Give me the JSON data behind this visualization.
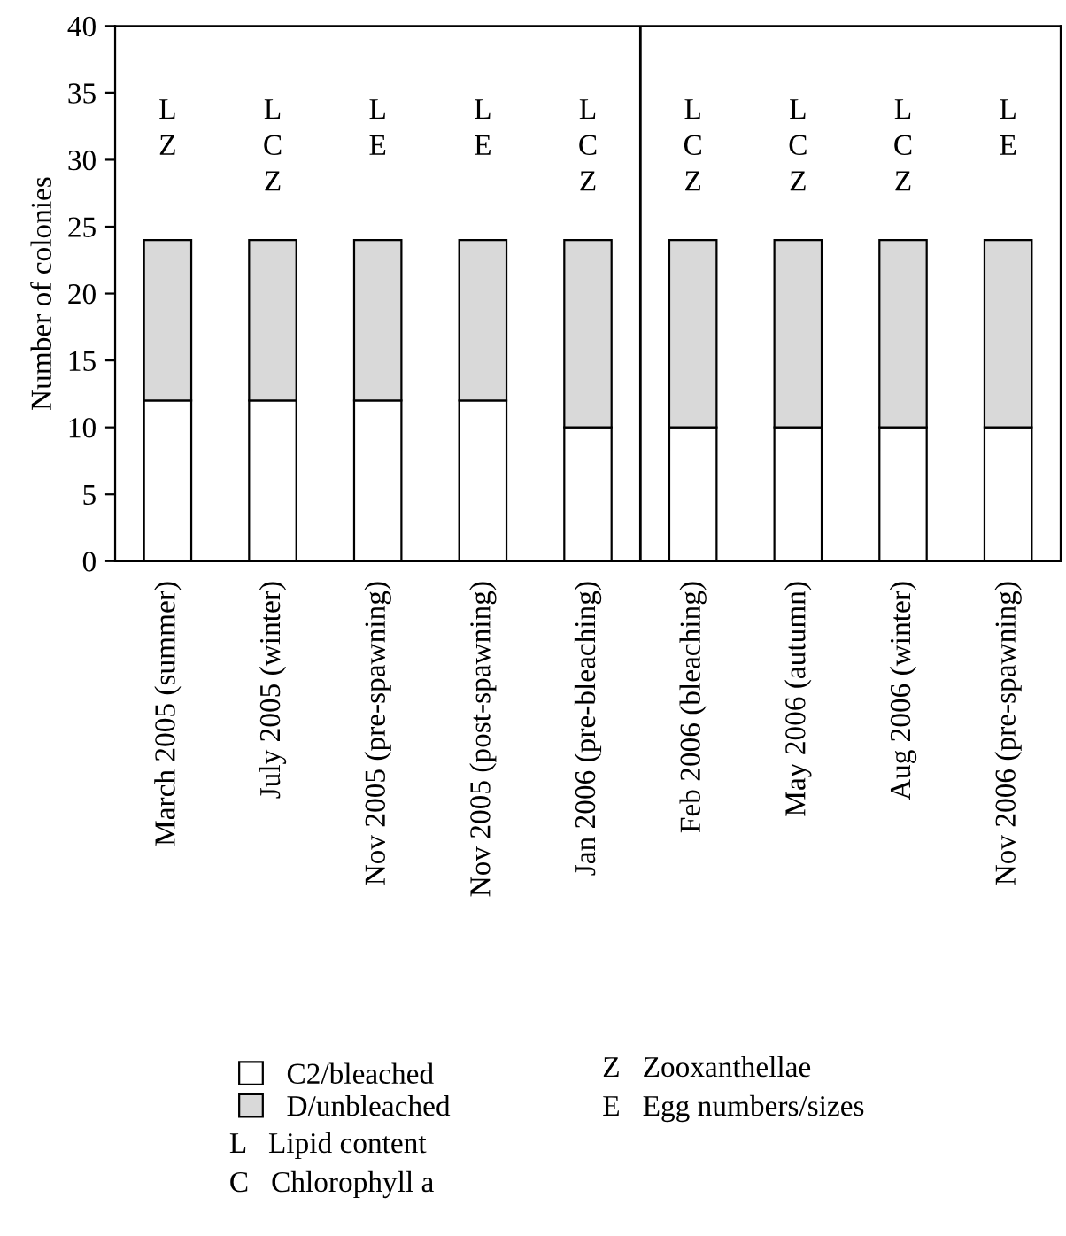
{
  "chart_data": {
    "type": "bar",
    "stacked": true,
    "ylabel": "Number of colonies",
    "categories": [
      "March 2005 (summer)",
      "July 2005 (winter)",
      "Nov 2005 (pre-spawning)",
      "Nov 2005 (post-spawning)",
      "Jan 2006 (pre-bleaching)",
      "Feb 2006 (bleaching)",
      "May 2006 (autumn)",
      "Aug 2006 (winter)",
      "Nov 2006 (pre-spawning)"
    ],
    "series": [
      {
        "name": "C2/bleached",
        "color": "#ffffff",
        "values": [
          12,
          12,
          12,
          12,
          10,
          10,
          10,
          10,
          10
        ]
      },
      {
        "name": "D/unbleached",
        "color": "#d9d9d9",
        "values": [
          12,
          12,
          12,
          12,
          14,
          14,
          14,
          14,
          14
        ]
      }
    ],
    "ylim": [
      0,
      40
    ],
    "yticks": [
      0,
      5,
      10,
      15,
      20,
      25,
      30,
      35,
      40
    ],
    "grid": false,
    "legend": "bottom",
    "annotations": [
      "L\nZ",
      "L\nC\nZ",
      "L\nE",
      "L\nE",
      "L\nC\nZ",
      "L\nC\nZ",
      "L\nC\nZ",
      "L\nC\nZ",
      "L\nE",
      "L   Lipid content",
      "C   Chlorophyll a",
      "Z   Zooxanthellae",
      "E   Egg numbers/sizes"
    ]
  }
}
